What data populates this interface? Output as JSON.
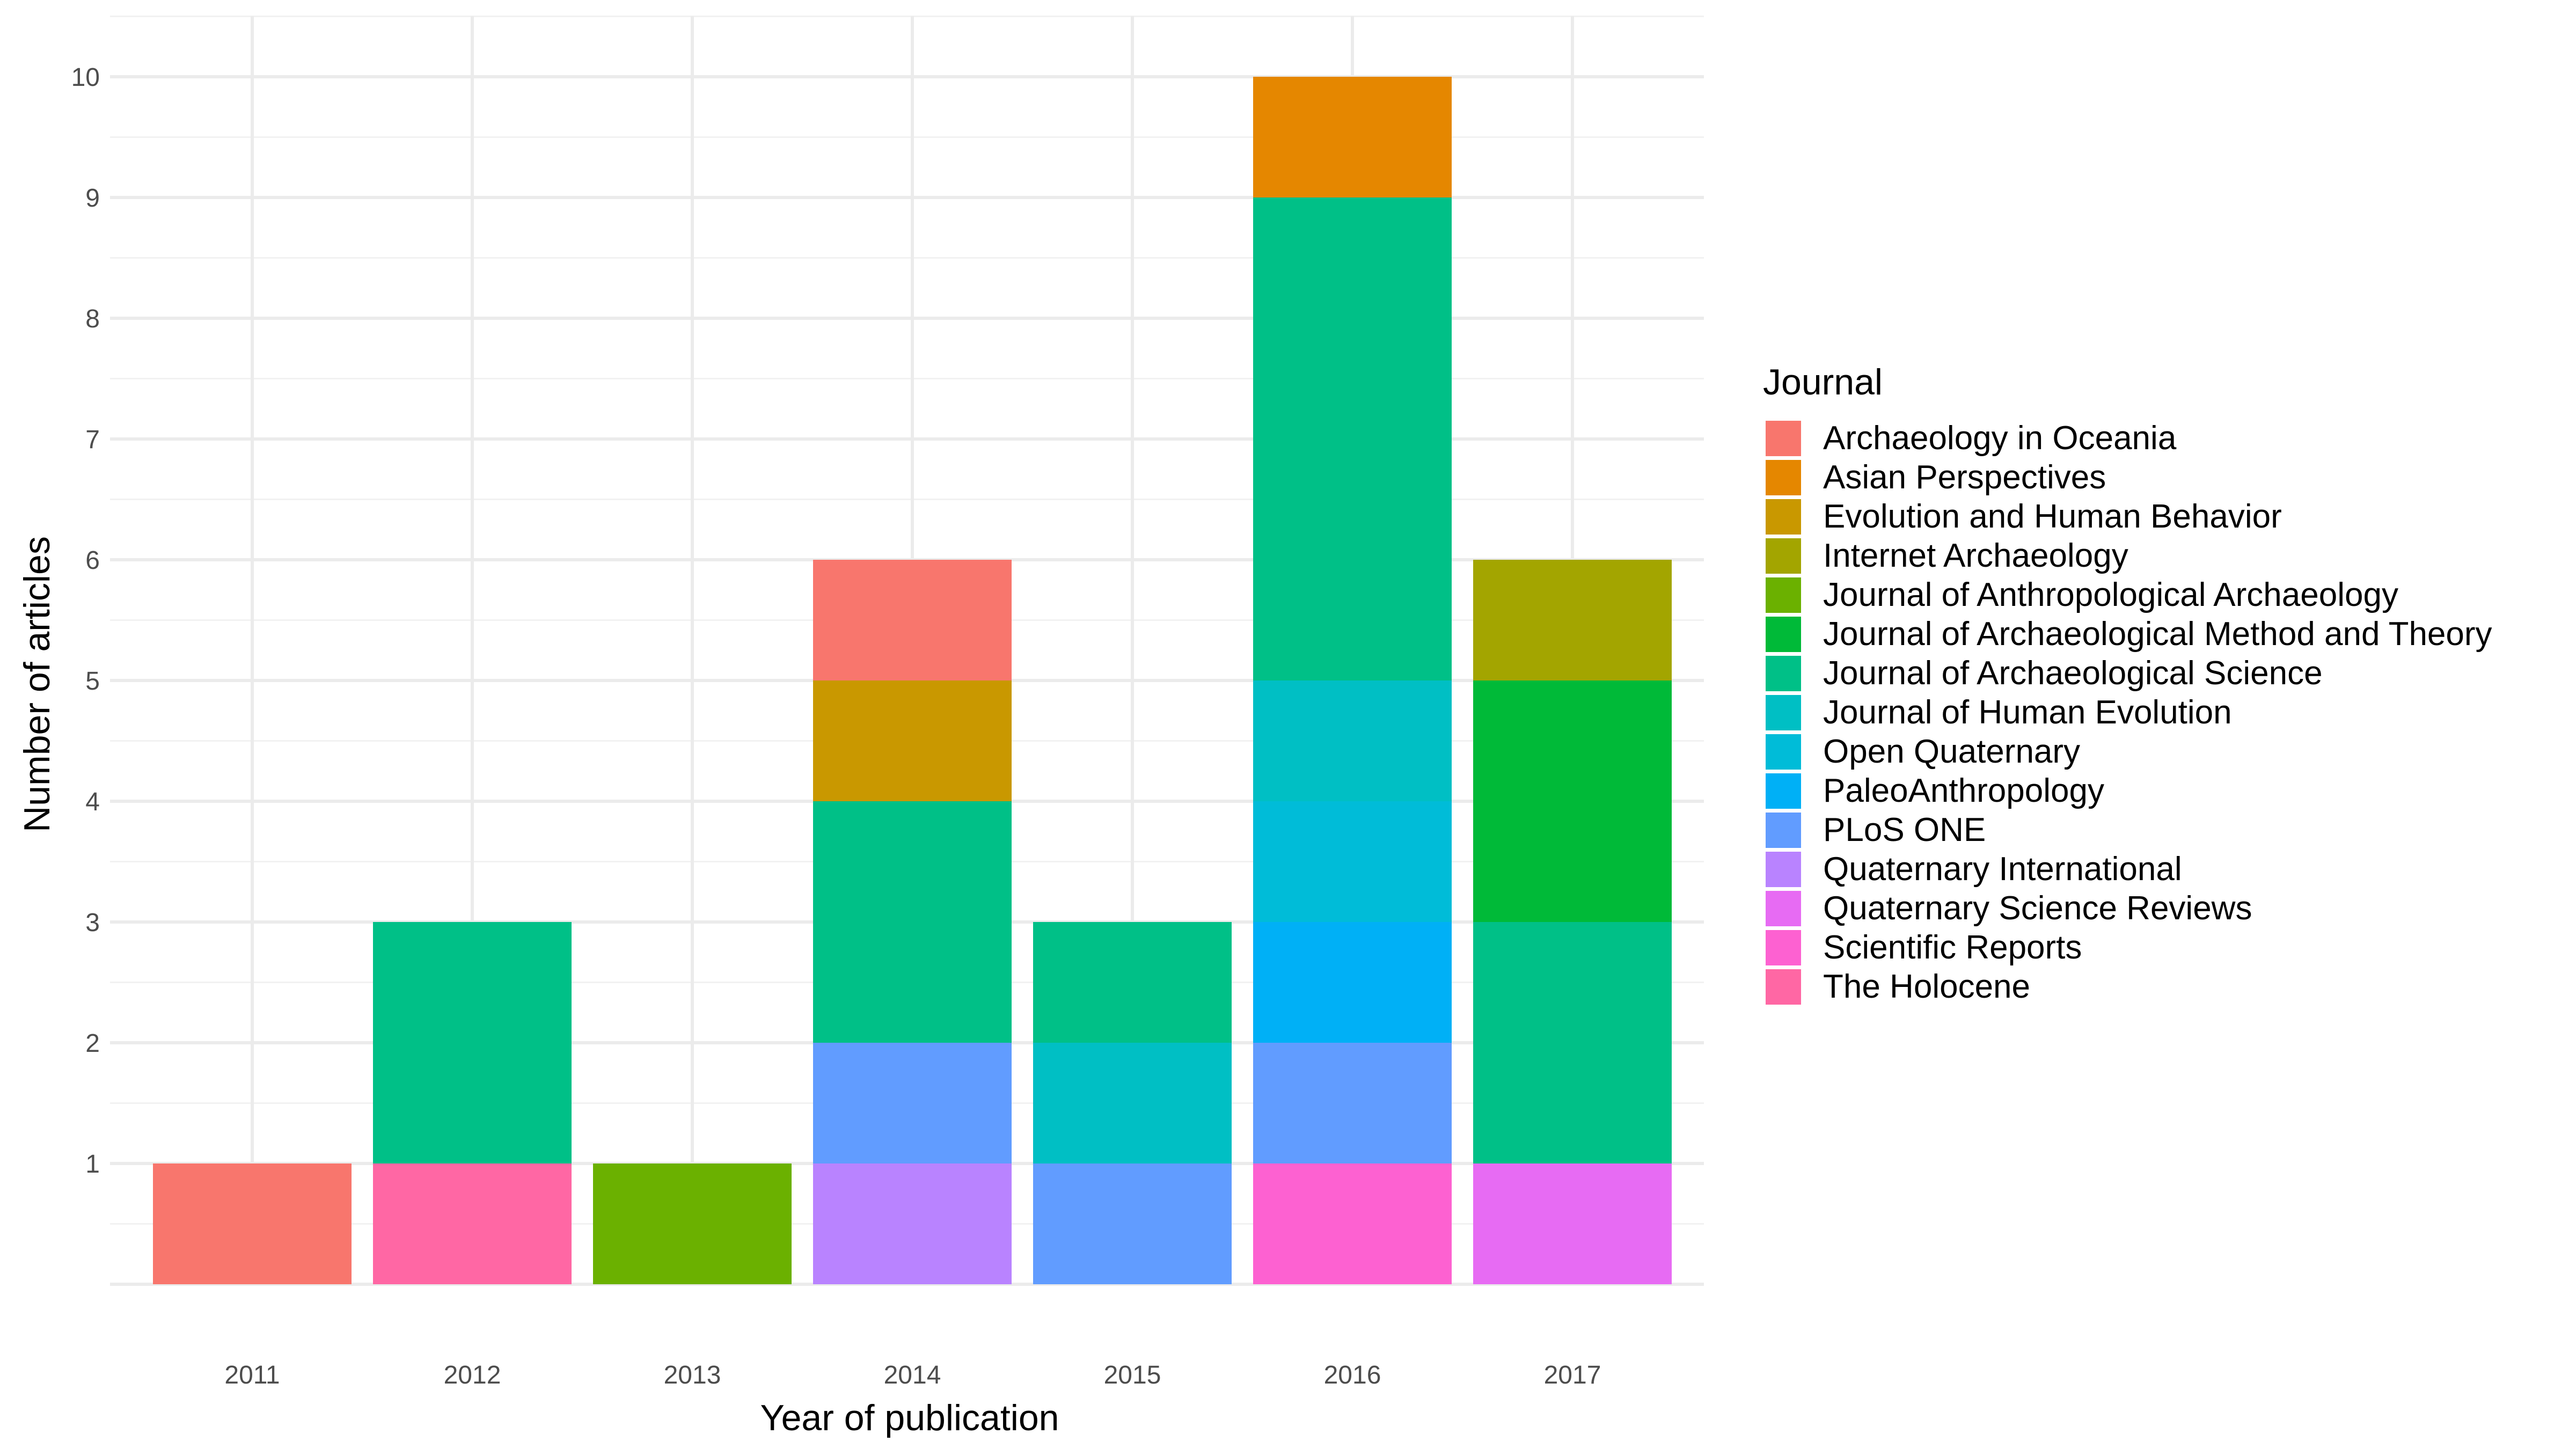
{
  "chart_data": {
    "type": "bar",
    "stacked": true,
    "xlabel": "Year of publication",
    "ylabel": "Number of articles",
    "categories": [
      "2011",
      "2012",
      "2013",
      "2014",
      "2015",
      "2016",
      "2017"
    ],
    "yticks": [
      1,
      2,
      3,
      4,
      5,
      6,
      7,
      8,
      9,
      10
    ],
    "ylim": [
      0,
      10.5
    ],
    "grid": true,
    "legend": {
      "title": "Journal",
      "position": "right"
    },
    "series": [
      {
        "name": "Archaeology in Oceania",
        "color": "#F8766D",
        "values": [
          1,
          0,
          0,
          1,
          0,
          0,
          0
        ]
      },
      {
        "name": "Asian Perspectives",
        "color": "#E58700",
        "values": [
          0,
          0,
          0,
          0,
          0,
          1,
          0
        ]
      },
      {
        "name": "Evolution and Human Behavior",
        "color": "#C99800",
        "values": [
          0,
          0,
          0,
          1,
          0,
          0,
          0
        ]
      },
      {
        "name": "Internet Archaeology",
        "color": "#A3A500",
        "values": [
          0,
          0,
          0,
          0,
          0,
          0,
          1
        ]
      },
      {
        "name": "Journal of Anthropological Archaeology",
        "color": "#6BB100",
        "values": [
          0,
          0,
          1,
          0,
          0,
          0,
          0
        ]
      },
      {
        "name": "Journal of Archaeological Method and Theory",
        "color": "#00BA38",
        "values": [
          0,
          0,
          0,
          0,
          0,
          0,
          2
        ]
      },
      {
        "name": "Journal of Archaeological Science",
        "color": "#00C087",
        "values": [
          0,
          2,
          0,
          2,
          1,
          4,
          2
        ]
      },
      {
        "name": "Journal of Human Evolution",
        "color": "#00BFC4",
        "values": [
          0,
          0,
          0,
          0,
          1,
          1,
          0
        ]
      },
      {
        "name": "Open Quaternary",
        "color": "#00BCD8",
        "values": [
          0,
          0,
          0,
          0,
          0,
          1,
          0
        ]
      },
      {
        "name": "PaleoAnthropology",
        "color": "#00B0F6",
        "values": [
          0,
          0,
          0,
          0,
          0,
          1,
          0
        ]
      },
      {
        "name": "PLoS ONE",
        "color": "#619CFF",
        "values": [
          0,
          0,
          0,
          1,
          1,
          1,
          0
        ]
      },
      {
        "name": "Quaternary International",
        "color": "#B983FF",
        "values": [
          0,
          0,
          0,
          1,
          0,
          0,
          0
        ]
      },
      {
        "name": "Quaternary Science Reviews",
        "color": "#E76BF3",
        "values": [
          0,
          0,
          0,
          0,
          0,
          0,
          1
        ]
      },
      {
        "name": "Scientific Reports",
        "color": "#FD61D1",
        "values": [
          0,
          0,
          0,
          0,
          0,
          1,
          0
        ]
      },
      {
        "name": "The Holocene",
        "color": "#FF67A4",
        "values": [
          0,
          1,
          0,
          0,
          0,
          0,
          0
        ]
      }
    ]
  }
}
